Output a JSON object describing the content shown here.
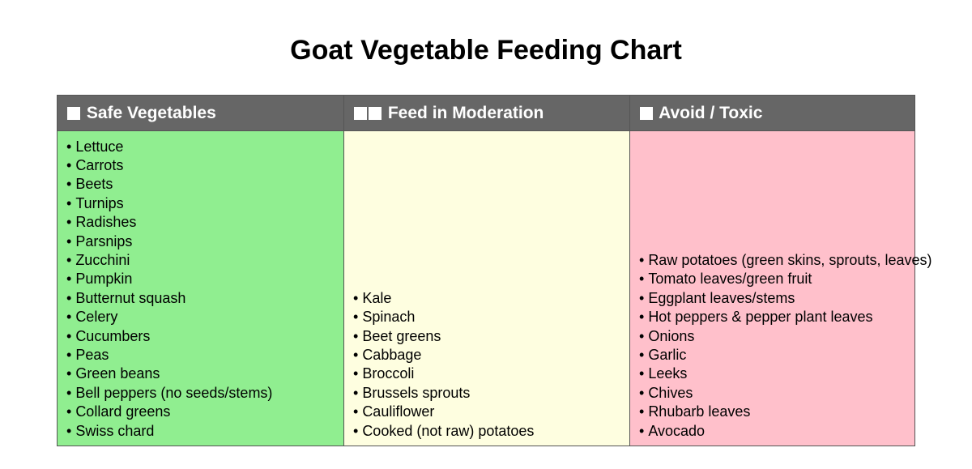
{
  "title": "Goat Vegetable Feeding Chart",
  "colors": {
    "header_bg": "#666666",
    "safe": "#90ee90",
    "moderation": "#fefee0",
    "avoid": "#ffc0cb"
  },
  "columns": [
    {
      "header": "Safe Vegetables",
      "icon": "white-square-icon",
      "items": [
        "Lettuce",
        "Carrots",
        "Beets",
        "Turnips",
        "Radishes",
        "Parsnips",
        "Zucchini",
        "Pumpkin",
        "Butternut squash",
        "Celery",
        "Cucumbers",
        "Peas",
        "Green beans",
        "Bell peppers (no seeds/stems)",
        "Collard greens",
        "Swiss chard"
      ]
    },
    {
      "header": "Feed in Moderation",
      "icon": "double-white-square-icon",
      "items": [
        "Kale",
        "Spinach",
        "Beet greens",
        "Cabbage",
        "Broccoli",
        "Brussels sprouts",
        "Cauliflower",
        "Cooked (not raw) potatoes"
      ]
    },
    {
      "header": "Avoid / Toxic",
      "icon": "white-square-icon",
      "items": [
        "Raw potatoes (green skins, sprouts, leaves)",
        "Tomato leaves/green fruit",
        "Eggplant leaves/stems",
        "Hot peppers & pepper plant leaves",
        "Onions",
        "Garlic",
        "Leeks",
        "Chives",
        "Rhubarb leaves",
        "Avocado"
      ]
    }
  ]
}
